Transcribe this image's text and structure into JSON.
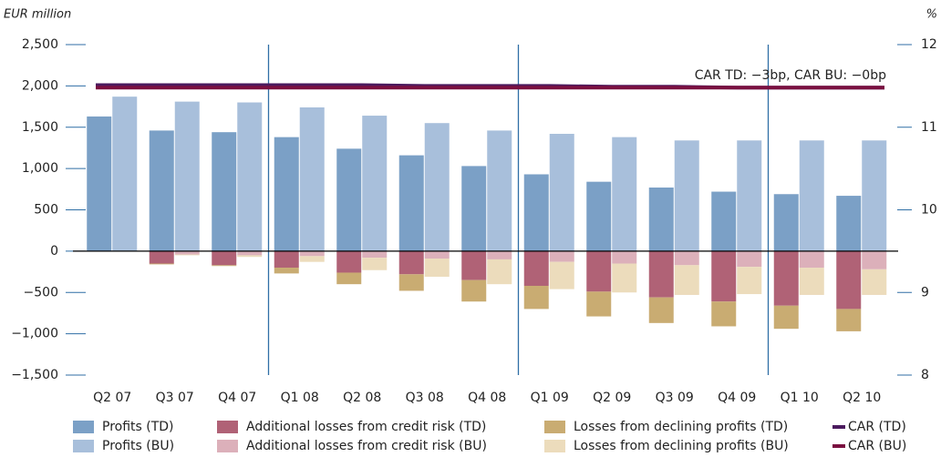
{
  "chart_data": {
    "type": "bar",
    "y_label": "EUR million",
    "y2_label": "%",
    "annotation": "CAR TD: −3bp, CAR BU: −0bp",
    "categories": [
      "Q2 07",
      "Q3 07",
      "Q4 07",
      "Q1 08",
      "Q2 08",
      "Q3 08",
      "Q4 08",
      "Q1 09",
      "Q2 09",
      "Q3 09",
      "Q4 09",
      "Q1 10",
      "Q2 10"
    ],
    "series": [
      {
        "name": "Profits (TD)",
        "color": "#7ba0c6",
        "values": [
          1630,
          1460,
          1440,
          1380,
          1240,
          1160,
          1030,
          930,
          840,
          770,
          720,
          690,
          670
        ]
      },
      {
        "name": "Profits (BU)",
        "color": "#a8bfdb",
        "values": [
          1870,
          1810,
          1800,
          1740,
          1640,
          1550,
          1460,
          1420,
          1380,
          1340,
          1340,
          1340,
          1340
        ]
      },
      {
        "name": "Additional losses from credit risk (TD)",
        "color": "#b06276",
        "values": [
          0,
          -150,
          -170,
          -200,
          -260,
          -280,
          -350,
          -420,
          -490,
          -560,
          -610,
          -660,
          -700
        ]
      },
      {
        "name": "Additional losses from credit risk (BU)",
        "color": "#dcb0ba",
        "values": [
          0,
          -40,
          -50,
          -60,
          -80,
          -90,
          -100,
          -130,
          -150,
          -170,
          -190,
          -200,
          -220
        ]
      },
      {
        "name": "Losses from declining profits (TD)",
        "color": "#c9ac72",
        "values": [
          0,
          -10,
          -10,
          -70,
          -140,
          -200,
          -260,
          -280,
          -300,
          -310,
          -300,
          -280,
          -270
        ]
      },
      {
        "name": "Losses from declining profits (BU)",
        "color": "#ecdcbc",
        "values": [
          0,
          -10,
          -20,
          -70,
          -150,
          -220,
          -300,
          -330,
          -350,
          -360,
          -330,
          -330,
          -310
        ]
      },
      {
        "name": "CAR (TD)",
        "color": "#4b1a5e",
        "type": "line",
        "axis": "y2",
        "values": [
          11.51,
          11.51,
          11.51,
          11.51,
          11.51,
          11.5,
          11.5,
          11.5,
          11.49,
          11.49,
          11.48,
          11.48,
          11.48
        ]
      },
      {
        "name": "CAR (BU)",
        "color": "#7a1040",
        "type": "line",
        "axis": "y2",
        "values": [
          11.48,
          11.48,
          11.48,
          11.48,
          11.48,
          11.48,
          11.48,
          11.48,
          11.48,
          11.48,
          11.48,
          11.48,
          11.48
        ]
      }
    ],
    "ylim": [
      -1500,
      2500
    ],
    "yticks": [
      {
        "value": -1500,
        "label": "−1,500"
      },
      {
        "value": -1000,
        "label": "−1,000"
      },
      {
        "value": -500,
        "label": "−500"
      },
      0,
      500,
      {
        "value": 1000,
        "label": "1,000"
      },
      {
        "value": 1500,
        "label": "1,500"
      },
      {
        "value": 2000,
        "label": "2,000"
      },
      {
        "value": 2500,
        "label": "2,500"
      }
    ],
    "y2lim": [
      8,
      12
    ],
    "y2ticks": [
      8,
      9,
      10,
      11,
      12
    ]
  }
}
